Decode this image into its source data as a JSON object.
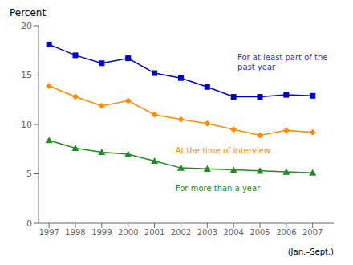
{
  "chart_data": {
    "type": "line",
    "y_label": "Percent",
    "x_label": "(Jan.–Sept.)",
    "x": [
      1997,
      1998,
      1999,
      2000,
      2001,
      2002,
      2003,
      2004,
      2005,
      2006,
      2007
    ],
    "xlim": [
      1996.6,
      2007.8
    ],
    "xticks": [
      1997,
      1998,
      1999,
      2000,
      2001,
      2002,
      2003,
      2004,
      2005,
      2006,
      2007
    ],
    "ylim": [
      0,
      20
    ],
    "yticks": [
      0,
      5,
      10,
      15,
      20
    ],
    "grid": false,
    "series": [
      {
        "color": "#0000cc",
        "marker": "square",
        "values": [
          18.1,
          17.0,
          16.2,
          16.7,
          15.2,
          14.7,
          13.8,
          12.8,
          12.8,
          13.0,
          12.9
        ]
      },
      {
        "color": "#ff8c00",
        "marker": "diamond",
        "values": [
          13.9,
          12.8,
          11.9,
          12.4,
          11.0,
          10.5,
          10.1,
          9.5,
          8.9,
          9.4,
          9.2
        ]
      },
      {
        "color": "#228B22",
        "marker": "triangle",
        "values": [
          8.4,
          7.6,
          7.2,
          7.0,
          6.3,
          5.6,
          5.5,
          5.4,
          5.3,
          5.2,
          5.1
        ]
      }
    ],
    "annotations": [
      {
        "text": "For at least part of the\npast year",
        "color": "#3333cc"
      },
      {
        "text": "At the time of interview",
        "color": "#ff8c00"
      },
      {
        "text": "For more than a year",
        "color": "#228B22"
      }
    ]
  }
}
